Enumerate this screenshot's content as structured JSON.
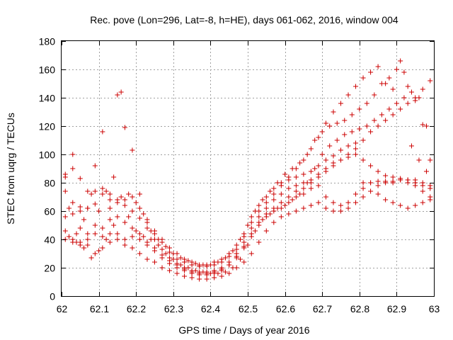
{
  "chart_data": {
    "type": "scatter",
    "title": "Rec. pove (Lon=296, Lat=-8, h=HE), days 061-062, 2016, window 004",
    "xlabel": "GPS time / Days of year 2016",
    "ylabel": "STEC from uqrg / TECUs",
    "xlim": [
      62,
      63
    ],
    "ylim": [
      0,
      180
    ],
    "xticks": [
      "62",
      "62.1",
      "62.2",
      "62.3",
      "62.4",
      "62.5",
      "62.6",
      "62.7",
      "62.8",
      "62.9",
      "63"
    ],
    "yticks": [
      "0",
      "20",
      "40",
      "60",
      "80",
      "100",
      "120",
      "140",
      "160",
      "180"
    ],
    "grid": true,
    "marker": "plus",
    "color": "#cc0000",
    "series": [
      {
        "x": [
          62.01,
          62.03,
          62.05,
          62.07,
          62.09,
          62.11,
          62.13,
          62.15,
          62.17,
          62.19,
          62.21,
          62.23,
          62.25,
          62.27,
          62.29,
          62.31,
          62.33,
          62.35,
          62.37,
          62.39,
          62.41,
          62.43,
          62.45,
          62.47,
          62.49,
          62.51,
          62.53,
          62.55,
          62.57,
          62.59,
          62.61,
          62.63,
          62.65,
          62.67,
          62.69,
          62.71,
          62.73,
          62.75,
          62.77,
          62.79,
          62.81,
          62.83,
          62.85,
          62.87,
          62.89,
          62.91,
          62.93,
          62.95,
          62.97,
          62.99
        ],
        "y": [
          84,
          90,
          63,
          62,
          74,
          76,
          62,
          66,
          68,
          70,
          62,
          52,
          44,
          38,
          31,
          26,
          24,
          22,
          21,
          21,
          22,
          24,
          28,
          33,
          42,
          52,
          60,
          66,
          72,
          78,
          82,
          84,
          86,
          88,
          92,
          96,
          99,
          103,
          106,
          108,
          80,
          80,
          81,
          81,
          81,
          82,
          82,
          82,
          80,
          78
        ]
      },
      {
        "x": [
          62.01,
          62.03,
          62.05,
          62.07,
          62.09,
          62.11,
          62.13,
          62.15,
          62.17,
          62.19,
          62.21,
          62.23,
          62.25,
          62.27,
          62.29,
          62.31,
          62.33,
          62.35,
          62.37,
          62.39,
          62.41,
          62.43,
          62.45,
          62.47,
          62.49,
          62.51,
          62.53,
          62.55,
          62.57,
          62.59,
          62.61,
          62.63,
          62.65,
          62.67,
          62.69,
          62.71,
          62.73,
          62.75,
          62.77,
          62.79,
          62.81,
          62.83,
          62.85,
          62.87,
          62.89,
          62.91,
          62.93,
          62.95,
          62.97,
          62.99
        ],
        "y": [
          74,
          66,
          60,
          62,
          65,
          72,
          72,
          68,
          64,
          60,
          55,
          48,
          40,
          33,
          27,
          23,
          20,
          18,
          17,
          17,
          18,
          20,
          24,
          30,
          38,
          48,
          56,
          62,
          68,
          72,
          76,
          78,
          80,
          82,
          84,
          88,
          92,
          96,
          100,
          104,
          110,
          116,
          120,
          124,
          128,
          132,
          136,
          140,
          146,
          152
        ]
      },
      {
        "x": [
          62.01,
          62.03,
          62.05,
          62.07,
          62.09,
          62.11,
          62.13,
          62.15,
          62.17,
          62.19,
          62.21,
          62.23,
          62.25,
          62.27,
          62.29,
          62.31,
          62.33,
          62.35,
          62.37,
          62.39,
          62.41,
          62.43,
          62.45,
          62.47,
          62.49,
          62.51,
          62.53,
          62.55,
          62.57,
          62.59,
          62.61,
          62.63,
          62.65,
          62.67,
          62.69,
          62.71,
          62.73,
          62.75,
          62.77,
          62.79,
          62.81,
          62.83,
          62.85,
          62.87,
          62.89,
          62.91,
          62.93,
          62.95,
          62.97,
          62.99
        ],
        "y": [
          46,
          40,
          38,
          36,
          44,
          42,
          44,
          44,
          40,
          42,
          40,
          36,
          32,
          27,
          23,
          20,
          18,
          16,
          15,
          15,
          16,
          18,
          22,
          28,
          34,
          42,
          50,
          56,
          62,
          66,
          70,
          74,
          76,
          80,
          86,
          90,
          94,
          96,
          98,
          100,
          96,
          92,
          88,
          85,
          84,
          83,
          82,
          80,
          78,
          76
        ]
      },
      {
        "x": [
          62.01,
          62.03,
          62.05,
          62.07,
          62.09,
          62.11,
          62.13,
          62.15,
          62.17,
          62.19,
          62.21,
          62.23,
          62.25,
          62.27,
          62.29,
          62.31,
          62.33,
          62.35,
          62.37,
          62.39,
          62.41,
          62.43,
          62.45,
          62.47,
          62.49,
          62.51,
          62.53,
          62.55,
          62.57,
          62.59,
          62.61,
          62.63,
          62.65,
          62.67,
          62.69,
          62.71,
          62.73,
          62.75,
          62.77,
          62.79,
          62.81,
          62.83,
          62.85,
          62.87,
          62.89,
          62.91,
          62.93,
          62.95,
          62.97,
          62.99
        ],
        "y": [
          40,
          38,
          36,
          40,
          30,
          34,
          38,
          40,
          36,
          34,
          30,
          26,
          24,
          20,
          18,
          16,
          14,
          13,
          12,
          12,
          13,
          14,
          16,
          20,
          24,
          30,
          38,
          46,
          52,
          56,
          58,
          60,
          62,
          64,
          66,
          62,
          60,
          60,
          62,
          66,
          70,
          74,
          78,
          80,
          80,
          82,
          80,
          78,
          74,
          70
        ]
      },
      {
        "x": [
          62.01,
          62.03,
          62.05,
          62.07,
          62.09,
          62.11,
          62.13,
          62.15,
          62.17,
          62.19,
          62.21,
          62.23,
          62.25,
          62.27,
          62.29,
          62.31,
          62.33,
          62.35,
          62.37,
          62.39,
          62.41,
          62.43,
          62.45,
          62.47,
          62.49,
          62.51,
          62.53,
          62.55,
          62.57,
          62.59,
          62.61,
          62.63,
          62.65,
          62.67,
          62.69,
          62.71,
          62.73,
          62.75,
          62.77,
          62.79,
          62.81,
          62.83,
          62.85,
          62.87,
          62.89,
          62.91,
          62.93,
          62.95,
          62.97,
          62.99
        ],
        "y": [
          56,
          58,
          48,
          44,
          50,
          48,
          54,
          56,
          52,
          48,
          44,
          38,
          34,
          29,
          25,
          22,
          19,
          17,
          16,
          16,
          17,
          19,
          22,
          27,
          35,
          44,
          52,
          58,
          60,
          62,
          66,
          70,
          72,
          76,
          78,
          70,
          66,
          64,
          66,
          72,
          76,
          80,
          72,
          68,
          66,
          64,
          62,
          64,
          66,
          68
        ]
      },
      {
        "x": [
          62.01,
          62.03,
          62.05,
          62.07,
          62.09,
          62.11,
          62.13,
          62.15,
          62.17,
          62.19,
          62.21,
          62.23,
          62.25,
          62.27,
          62.29,
          62.31,
          62.33,
          62.35,
          62.37,
          62.39,
          62.41,
          62.43,
          62.45,
          62.47,
          62.49,
          62.51,
          62.53,
          62.55,
          62.57,
          62.59,
          62.61,
          62.63,
          62.65,
          62.67,
          62.69,
          62.71,
          62.73,
          62.75,
          62.77,
          62.79,
          62.81,
          62.83,
          62.85,
          62.87,
          62.89,
          62.91,
          62.93,
          62.95,
          62.97,
          62.99
        ],
        "y": [
          86,
          100,
          83,
          74,
          92,
          116,
          68,
          142,
          119,
          103,
          72,
          54,
          46,
          40,
          34,
          30,
          26,
          24,
          22,
          22,
          24,
          26,
          30,
          36,
          44,
          56,
          64,
          70,
          76,
          80,
          84,
          90,
          96,
          104,
          112,
          122,
          130,
          136,
          142,
          148,
          154,
          158,
          162,
          150,
          146,
          166,
          148,
          138,
          121,
          96
        ]
      },
      {
        "x": [
          62.02,
          62.04,
          62.06,
          62.08,
          62.1,
          62.12,
          62.14,
          62.16,
          62.18,
          62.2,
          62.22,
          62.24,
          62.26,
          62.28,
          62.3,
          62.32,
          62.34,
          62.36,
          62.38,
          62.4,
          62.42,
          62.44,
          62.46,
          62.48,
          62.5,
          62.52,
          62.54,
          62.56,
          62.58,
          62.6,
          62.62,
          62.64,
          62.66,
          62.68,
          62.7,
          62.72,
          62.74,
          62.76,
          62.78,
          62.8,
          62.82,
          62.84,
          62.86,
          62.88,
          62.9,
          62.92,
          62.94,
          62.96,
          62.98
        ],
        "y": [
          42,
          38,
          34,
          27,
          32,
          40,
          50,
          144,
          56,
          46,
          42,
          40,
          36,
          30,
          26,
          22,
          20,
          18,
          17,
          16,
          16,
          17,
          20,
          26,
          36,
          46,
          54,
          58,
          62,
          64,
          68,
          72,
          80,
          90,
          100,
          106,
          110,
          114,
          116,
          118,
          120,
          124,
          128,
          132,
          136,
          140,
          144,
          140,
          120
        ]
      },
      {
        "x": [
          62.02,
          62.04,
          62.06,
          62.08,
          62.1,
          62.12,
          62.14,
          62.16,
          62.18,
          62.2,
          62.22,
          62.24,
          62.26,
          62.28,
          62.3,
          62.32,
          62.34,
          62.36,
          62.38,
          62.4,
          62.42,
          62.44,
          62.46,
          62.48,
          62.5,
          62.52,
          62.54,
          62.56,
          62.58,
          62.6,
          62.62,
          62.64,
          62.66,
          62.68,
          62.7,
          62.72,
          62.74,
          62.76,
          62.78,
          62.8,
          62.82,
          62.84,
          62.86,
          62.88,
          62.9,
          62.92,
          62.94,
          62.96,
          62.98
        ],
        "y": [
          62,
          44,
          54,
          72,
          60,
          74,
          84,
          70,
          72,
          66,
          58,
          46,
          40,
          35,
          30,
          27,
          25,
          23,
          22,
          22,
          24,
          27,
          32,
          40,
          50,
          60,
          68,
          74,
          80,
          86,
          90,
          94,
          100,
          110,
          116,
          120,
          122,
          124,
          128,
          132,
          136,
          142,
          150,
          154,
          160,
          158,
          106,
          96,
          88
        ]
      }
    ]
  }
}
